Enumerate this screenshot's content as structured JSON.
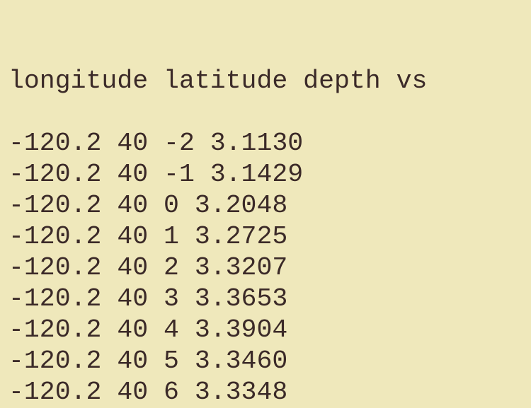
{
  "output": {
    "header": "longitude latitude depth vs",
    "rows": [
      "-120.2 40 -2 3.1130",
      "-120.2 40 -1 3.1429",
      "-120.2 40 0 3.2048",
      "-120.2 40 1 3.2725",
      "-120.2 40 2 3.3207",
      "-120.2 40 3 3.3653",
      "-120.2 40 4 3.3904",
      "-120.2 40 5 3.3460",
      "-120.2 40 6 3.3348"
    ]
  }
}
